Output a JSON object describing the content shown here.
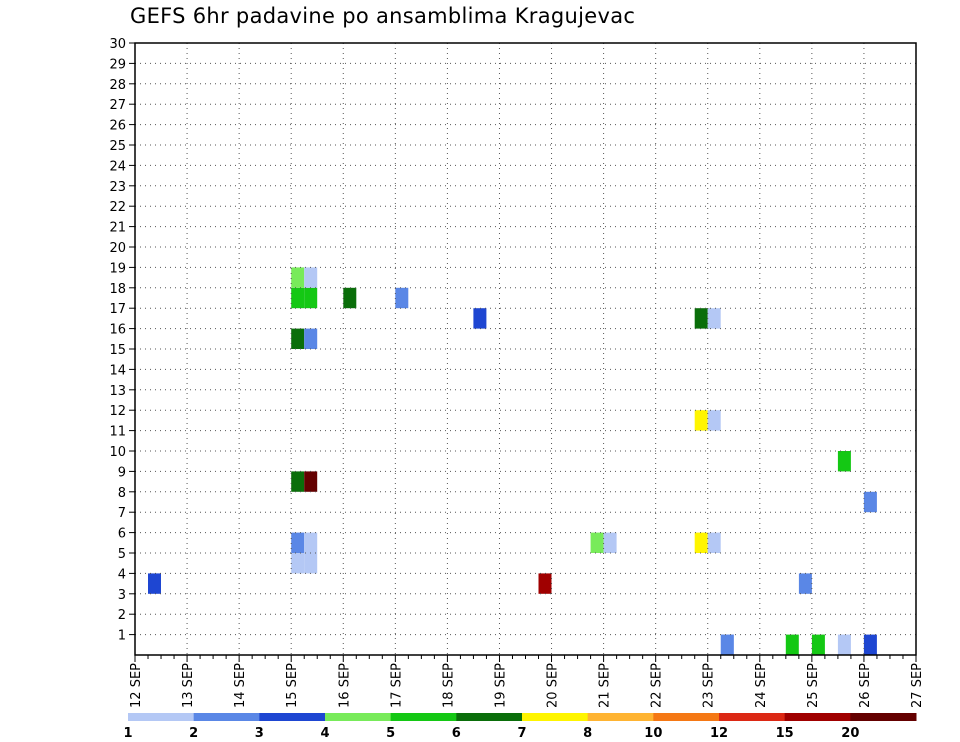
{
  "chart_data": {
    "type": "heatmap",
    "title": "GEFS 6hr padavine po ansamblima Kragujevac",
    "xlabel": "",
    "ylabel": "",
    "x_ticks": [
      "12 SEP",
      "13 SEP",
      "14 SEP",
      "15 SEP",
      "16 SEP",
      "17 SEP",
      "18 SEP",
      "19 SEP",
      "20 SEP",
      "21 SEP",
      "22 SEP",
      "23 SEP",
      "24 SEP",
      "25 SEP",
      "26 SEP",
      "27 SEP"
    ],
    "y_ticks": [
      "1",
      "2",
      "3",
      "4",
      "5",
      "6",
      "7",
      "8",
      "9",
      "10",
      "11",
      "12",
      "13",
      "14",
      "15",
      "16",
      "17",
      "18",
      "19",
      "20",
      "21",
      "22",
      "23",
      "24",
      "25",
      "26",
      "27",
      "28",
      "29",
      "30"
    ],
    "xlim": [
      0,
      15
    ],
    "ylim": [
      0,
      30
    ],
    "grid": true,
    "step_per_day": 4,
    "legend": {
      "placement": "bottom",
      "labels": [
        "1",
        "2",
        "3",
        "4",
        "5",
        "6",
        "7",
        "8",
        "10",
        "12",
        "15",
        "20"
      ],
      "colors": [
        "#b4c8f5",
        "#5a87e6",
        "#1e46d2",
        "#78eb5a",
        "#14c814",
        "#0a6e0a",
        "#fff500",
        "#ffb432",
        "#f57814",
        "#dc2814",
        "#a00000",
        "#640000"
      ]
    },
    "cells": [
      {
        "t": 11.25,
        "m": 0,
        "v": 1
      },
      {
        "t": 11.25,
        "m": 0,
        "v": 2
      },
      {
        "t": 12.5,
        "m": 0,
        "v": 5
      },
      {
        "t": 13.0,
        "m": 0,
        "v": 5
      },
      {
        "t": 13.5,
        "m": 0,
        "v": 1
      },
      {
        "t": 14.0,
        "m": 0,
        "v": 3
      },
      {
        "t": 0.25,
        "m": 3,
        "v": 3
      },
      {
        "t": 7.75,
        "m": 3,
        "v": 15
      },
      {
        "t": 12.75,
        "m": 3,
        "v": 2
      },
      {
        "t": 3.0,
        "m": 4,
        "v": 1
      },
      {
        "t": 3.25,
        "m": 4,
        "v": 1
      },
      {
        "t": 3.0,
        "m": 5,
        "v": 2
      },
      {
        "t": 3.25,
        "m": 5,
        "v": 1
      },
      {
        "t": 8.75,
        "m": 5,
        "v": 4
      },
      {
        "t": 9.0,
        "m": 5,
        "v": 1
      },
      {
        "t": 10.75,
        "m": 5,
        "v": 7
      },
      {
        "t": 11.0,
        "m": 5,
        "v": 1
      },
      {
        "t": 14.0,
        "m": 7,
        "v": 2
      },
      {
        "t": 3.0,
        "m": 8,
        "v": 6
      },
      {
        "t": 3.25,
        "m": 8,
        "v": 20
      },
      {
        "t": 13.5,
        "m": 9,
        "v": 5
      },
      {
        "t": 10.75,
        "m": 11,
        "v": 7
      },
      {
        "t": 11.0,
        "m": 11,
        "v": 1
      },
      {
        "t": 3.0,
        "m": 15,
        "v": 6
      },
      {
        "t": 3.25,
        "m": 15,
        "v": 2
      },
      {
        "t": 6.5,
        "m": 16,
        "v": 3
      },
      {
        "t": 10.75,
        "m": 16,
        "v": 6
      },
      {
        "t": 11.0,
        "m": 16,
        "v": 1
      },
      {
        "t": 3.0,
        "m": 17,
        "v": 5
      },
      {
        "t": 3.25,
        "m": 17,
        "v": 5
      },
      {
        "t": 4.0,
        "m": 17,
        "v": 6
      },
      {
        "t": 5.0,
        "m": 17,
        "v": 2
      },
      {
        "t": 3.0,
        "m": 18,
        "v": 4
      },
      {
        "t": 3.25,
        "m": 18,
        "v": 1
      }
    ]
  }
}
